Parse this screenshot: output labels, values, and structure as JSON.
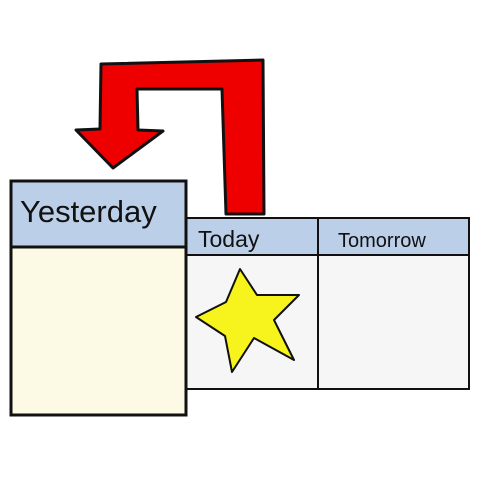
{
  "days": {
    "yesterday": "Yesterday",
    "today": "Today",
    "tomorrow": "Tomorrow"
  },
  "icons": {
    "arrow": "bent-arrow-icon",
    "marker": "star-icon"
  },
  "colors": {
    "header_fill": "#bccfe9",
    "yesterday_body": "#fcf9e4",
    "day_body": "#f6f6f6",
    "arrow": "#ee0000",
    "star": "#f7f31c",
    "outline": "#111111"
  }
}
